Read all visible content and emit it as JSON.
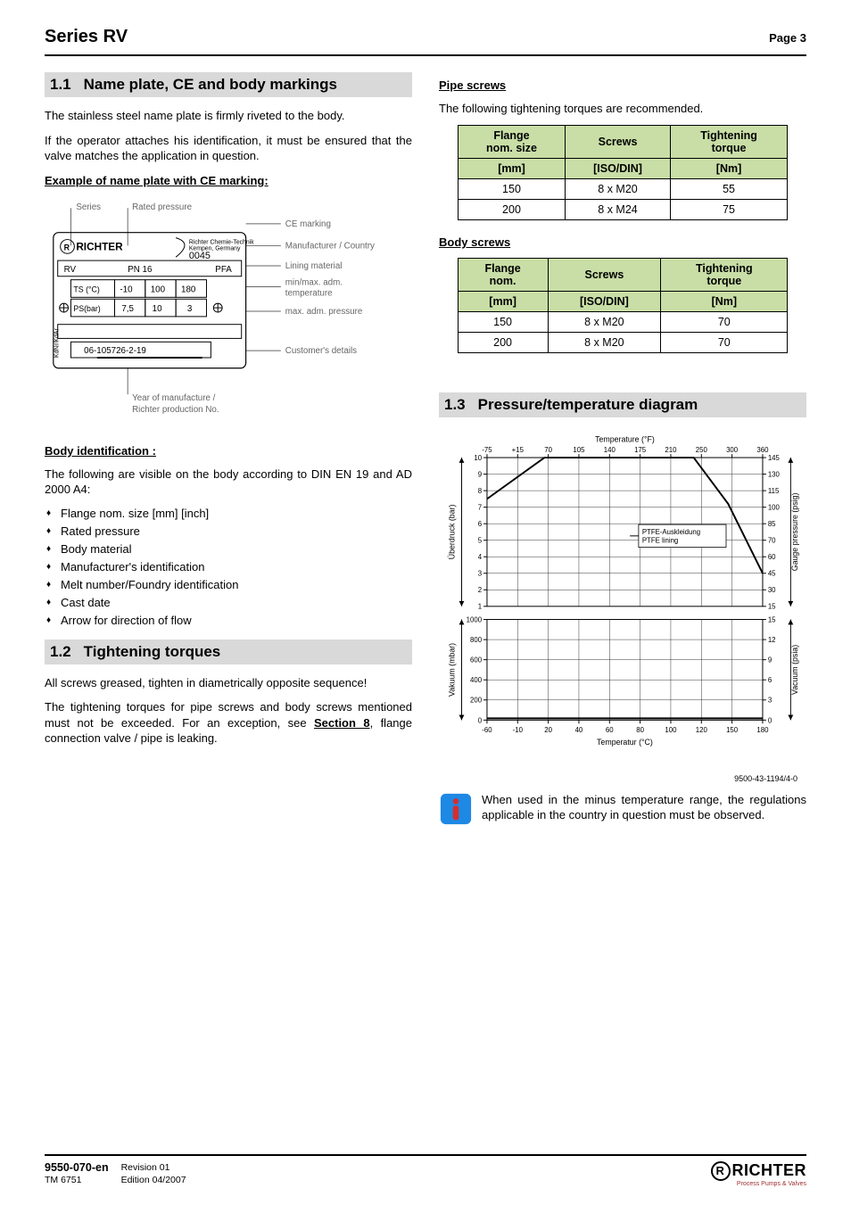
{
  "header": {
    "series": "Series RV",
    "page": "Page 3"
  },
  "s11": {
    "num": "1.1",
    "title": "Name plate, CE and body markings",
    "p1": "The stainless steel name plate is firmly riveted to the body.",
    "p2": "If the operator attaches his identification, it must be ensured that the valve matches the application in question.",
    "example_head": "Example of name plate with CE marking:",
    "nameplate": {
      "labels": {
        "series": "Series",
        "rated": "Rated pressure",
        "ce": "CE marking",
        "manuf": "Manufacturer / Country",
        "lining": "Lining material",
        "temp1": "min/max. adm.",
        "temp2": "temperature",
        "maxp": "max. adm. pressure",
        "cust": "Customer's details",
        "year": "Year of manufacture /",
        "prodno": "Richter production No."
      },
      "values": {
        "brand": "RICHTER",
        "ce_no": "0045",
        "rv": "RV",
        "pn": "PN 16",
        "pfa": "PFA",
        "ts_lbl": "TS (°C)",
        "ts_min": "-10",
        "ts_mid": "100",
        "ts_max": "180",
        "ps_lbl": "PS(bar)",
        "ps_a": "7,5",
        "ps_b": "10",
        "ps_c": "3",
        "serial": "06-105726-2-19"
      }
    },
    "bodyid_head": "Body identification :",
    "bodyid_intro": "The following are visible on the body according to DIN EN 19 and AD 2000 A4:",
    "bodyid_items": [
      "Flange nom. size [mm] [inch]",
      "Rated pressure",
      "Body material",
      "Manufacturer's identification",
      "Melt number/Foundry identification",
      "Cast date",
      "Arrow for direction of flow"
    ]
  },
  "s12": {
    "num": "1.2",
    "title": "Tightening torques",
    "p1": "All screws greased, tighten in diametrically opposite sequence!",
    "p2a": "The tightening torques for pipe screws and body screws mentioned must not be exceeded. For an exception, see ",
    "p2b": "Section 8",
    "p2c": ", flange connection valve / pipe is leaking."
  },
  "pipe": {
    "head": "Pipe screws",
    "intro": "The following tightening torques are recommended.",
    "cols": {
      "c1a": "Flange",
      "c1b": "nom. size",
      "c2": "Screws",
      "c3a": "Tightening",
      "c3b": "torque",
      "u1": "[mm]",
      "u2": "[ISO/DIN]",
      "u3": "[Nm]"
    },
    "rows": [
      {
        "size": "150",
        "screws": "8 x M20",
        "torque": "55"
      },
      {
        "size": "200",
        "screws": "8 x M24",
        "torque": "75"
      }
    ]
  },
  "bodyscrews": {
    "head": "Body screws",
    "cols": {
      "c1a": "Flange",
      "c1b": "nom.",
      "c2": "Screws",
      "c3a": "Tightening",
      "c3b": "torque",
      "u1": "[mm]",
      "u2": "[ISO/DIN]",
      "u3": "[Nm]"
    },
    "rows": [
      {
        "size": "150",
        "screws": "8 x M20",
        "torque": "70"
      },
      {
        "size": "200",
        "screws": "8 x M20",
        "torque": "70"
      }
    ]
  },
  "s13": {
    "num": "1.3",
    "title": "Pressure/temperature diagram",
    "chart": {
      "top_label": "Temperature (°F)",
      "top_ticks": [
        "-75",
        "+15",
        "70",
        "105",
        "140",
        "175",
        "210",
        "250",
        "300",
        "360"
      ],
      "right_top_ticks": [
        "145",
        "130",
        "115",
        "100",
        "85",
        "70",
        "60",
        "45",
        "30",
        "15"
      ],
      "right_top_label": "Gauge pressure (psig)",
      "left_top_label": "Überdruck (bar)",
      "left_top_ticks": [
        "10",
        "9",
        "8",
        "7",
        "6",
        "5",
        "4",
        "3",
        "2",
        "1"
      ],
      "left_bot_label": "Vakuum (mbar)",
      "left_bot_ticks": [
        "1000",
        "800",
        "600",
        "400",
        "200",
        "0"
      ],
      "right_bot_label": "Vacuum (psia)",
      "right_bot_ticks": [
        "15",
        "12",
        "9",
        "6",
        "3",
        "0"
      ],
      "bot_label": "Temperatur (°C)",
      "bot_ticks": [
        "-60",
        "-10",
        "20",
        "40",
        "60",
        "80",
        "100",
        "120",
        "150",
        "180"
      ],
      "legend1": "PTFE-Auskleidung",
      "legend2": "PTFE lining",
      "top_series": {
        "type": "line",
        "color": "#000000",
        "points_c_bar": [
          [
            -60,
            7.5
          ],
          [
            -10,
            10
          ],
          [
            20,
            10
          ],
          [
            120,
            10
          ],
          [
            150,
            7.2
          ],
          [
            180,
            3
          ]
        ],
        "xlim_c": [
          -60,
          180
        ],
        "ylim_bar": [
          1,
          10
        ]
      },
      "bot_series": {
        "type": "line",
        "color": "#000000",
        "points_c_mbar": [
          [
            -60,
            0
          ],
          [
            -10,
            0
          ],
          [
            20,
            0
          ],
          [
            120,
            0
          ],
          [
            180,
            0
          ]
        ],
        "xlim_c": [
          -60,
          180
        ],
        "ylim_mbar": [
          0,
          1000
        ]
      },
      "grid_color": "#000000",
      "background_color": "#ffffff"
    },
    "chart_code": "9500-43-1194/4-0",
    "note": "When used in the minus temperature range, the regulations applicable in the country in question must be observed."
  },
  "footer": {
    "docno": "9550-070-en",
    "tm": "TM 6751",
    "rev": "Revision 01",
    "ed": "Edition 04/2007",
    "brand": "RICHTER",
    "sub": "Process Pumps & Valves"
  },
  "colors": {
    "section_bg": "#d9d9d9",
    "table_header": "#c9dea6",
    "note_icon_fill": "#1e88e5",
    "note_icon_excl": "#d32f2f"
  }
}
